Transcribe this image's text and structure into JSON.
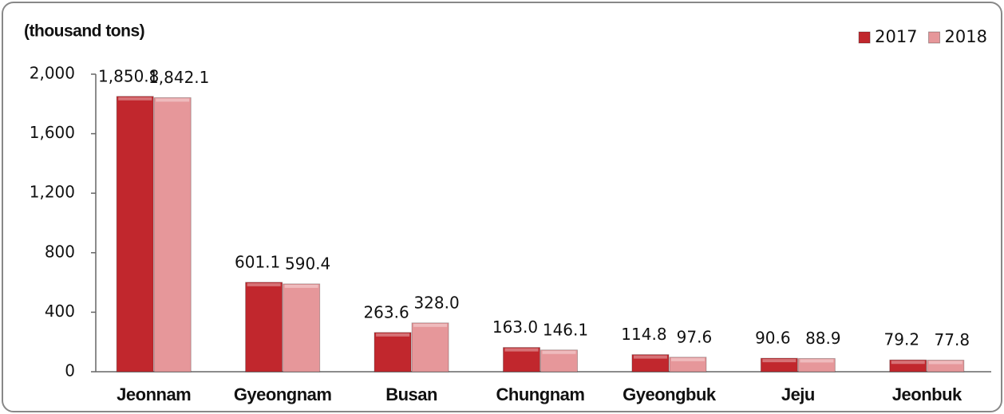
{
  "chart_data": {
    "type": "bar",
    "y_label": "(thousand tons)",
    "categories": [
      "Jeonnam",
      "Gyeongnam",
      "Busan",
      "Chungnam",
      "Gyeongbuk",
      "Jeju",
      "Jeonbuk"
    ],
    "series": [
      {
        "name": "2017",
        "color": "#c1272d",
        "values": [
          1850.8,
          601.1,
          263.6,
          163.0,
          114.8,
          90.6,
          79.2
        ],
        "value_labels": [
          "1,850.8",
          "601.1",
          "263.6",
          "163.0",
          "114.8",
          "90.6",
          "79.2"
        ]
      },
      {
        "name": "2018",
        "color": "#e6979a",
        "values": [
          1842.1,
          590.4,
          328.0,
          146.1,
          97.6,
          88.9,
          77.8
        ],
        "value_labels": [
          "1,842.1",
          "590.4",
          "328.0",
          "146.1",
          "97.6",
          "88.9",
          "77.8"
        ]
      }
    ],
    "ylim": [
      0,
      2000
    ],
    "yticks": [
      0,
      400,
      800,
      {
        "value": 1200,
        "label": "1,200"
      },
      {
        "value": 1600,
        "label": "1,600"
      },
      {
        "value": 2000,
        "label": "2,000"
      }
    ],
    "legend": "top-right",
    "grid": false
  }
}
